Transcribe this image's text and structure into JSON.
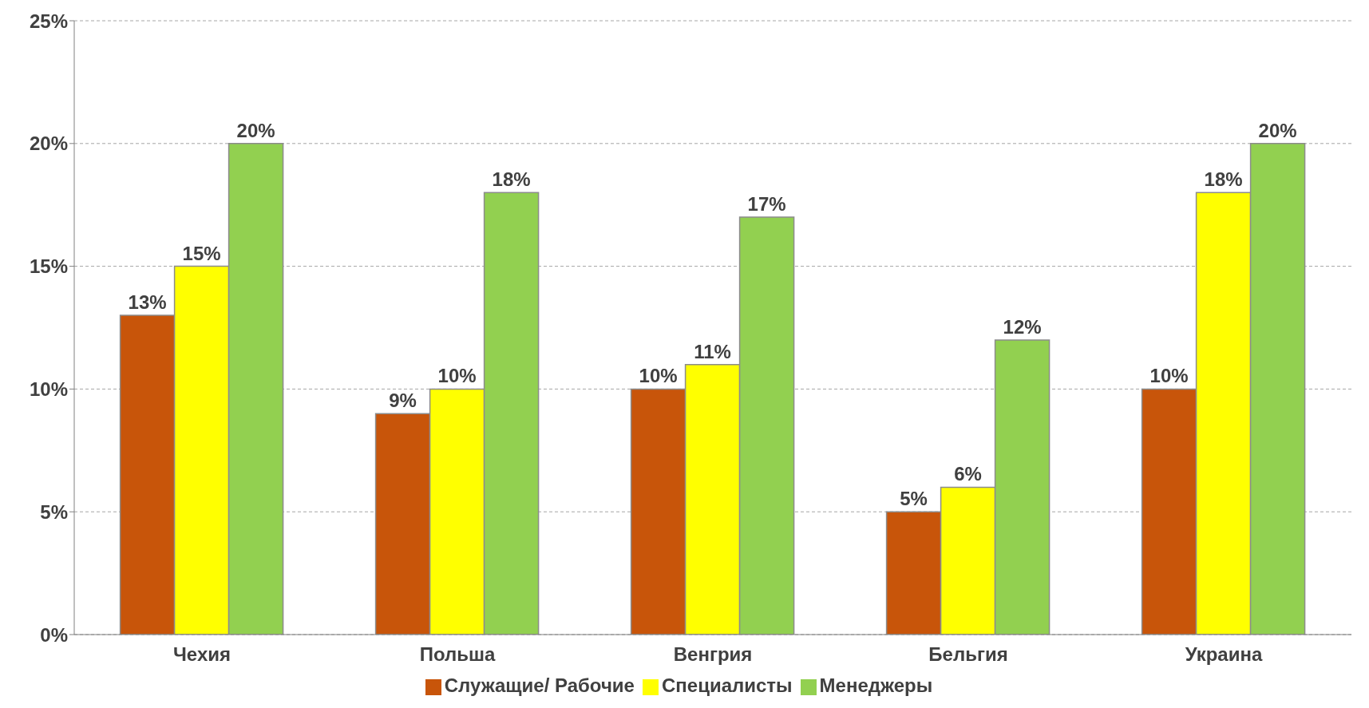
{
  "chart_data": {
    "type": "bar",
    "categories": [
      "Чехия",
      "Польша",
      "Венгрия",
      "Бельгия",
      "Украина"
    ],
    "series": [
      {
        "name": "Служащие/ Рабочие",
        "color": "#c8550a",
        "values": [
          13,
          9,
          10,
          5,
          10
        ],
        "value_labels": [
          "13%",
          "9%",
          "10%",
          "5%",
          "10%"
        ]
      },
      {
        "name": "Специалисты",
        "color": "#ffff00",
        "values": [
          15,
          10,
          11,
          6,
          18
        ],
        "value_labels": [
          "15%",
          "10%",
          "11%",
          "6%",
          "18%"
        ]
      },
      {
        "name": "Менеджеры",
        "color": "#92d050",
        "values": [
          20,
          18,
          17,
          12,
          20
        ],
        "value_labels": [
          "20%",
          "18%",
          "17%",
          "12%",
          "20%"
        ]
      }
    ],
    "ylim": [
      0,
      25
    ],
    "yticks": [
      {
        "value": 0,
        "label": "0%"
      },
      {
        "value": 5,
        "label": "5%"
      },
      {
        "value": 10,
        "label": "10%"
      },
      {
        "value": 15,
        "label": "15%"
      },
      {
        "value": 20,
        "label": "20%"
      },
      {
        "value": 25,
        "label": "25%"
      }
    ],
    "grid": "y",
    "legend": "bottom"
  }
}
